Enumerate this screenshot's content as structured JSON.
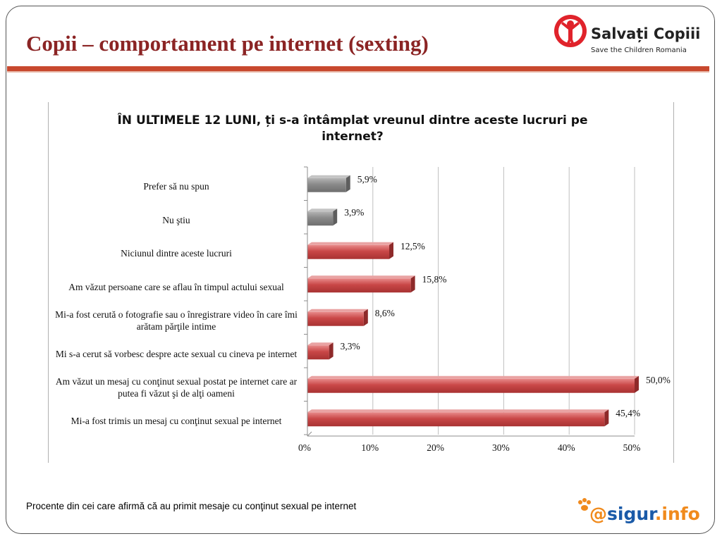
{
  "slide": {
    "title": "Copii – comportament pe internet (sexting)",
    "footnote": "Procente din cei care afirmă că au primit mesaje cu conţinut sexual pe internet"
  },
  "logos": {
    "salvati_copii": {
      "name": "Salvați Copiii",
      "subtitle": "Save the Children Romania",
      "icon": "child-figure-icon",
      "color": "#e0232b"
    },
    "sigur_info": {
      "at": "@",
      "name": "sigur",
      "suffix": ".info",
      "icon": "paw-icon",
      "colors": {
        "primary": "#1a5aa8",
        "accent": "#f08a1c"
      }
    }
  },
  "chart_data": {
    "type": "bar",
    "orientation": "horizontal",
    "title": "ÎN ULTIMELE 12 LUNI, ți s-a întâmplat vreunul dintre aceste lucruri pe internet?",
    "categories": [
      "Prefer să nu spun",
      "Nu ştiu",
      "Niciunul dintre aceste lucruri",
      "Am văzut persoane care se aflau în timpul actului sexual",
      "Mi-a fost cerută o fotografie sau o înregistrare video în care îmi arătam părţile intime",
      "Mi s-a cerut să vorbesc despre acte sexual cu cineva pe internet",
      "Am văzut un mesaj cu conţinut sexual postat pe internet care ar putea fi văzut şi de alţi oameni",
      "Mi-a fost trimis un mesaj cu conţinut sexual pe internet"
    ],
    "values": [
      5.9,
      3.9,
      12.5,
      15.8,
      8.6,
      3.3,
      50.0,
      45.4
    ],
    "value_labels": [
      "5,9%",
      "3,9%",
      "12,5%",
      "15,8%",
      "8,6%",
      "3,3%",
      "50,0%",
      "45,4%"
    ],
    "bar_colors": [
      "#8a8a8a",
      "#8a8a8a",
      "#c94747",
      "#c94747",
      "#c94747",
      "#c94747",
      "#c94747",
      "#c94747"
    ],
    "xlim": [
      0,
      50
    ],
    "x_ticks": [
      0,
      10,
      20,
      30,
      40,
      50
    ],
    "x_tick_labels": [
      "0%",
      "10%",
      "20%",
      "30%",
      "40%",
      "50%"
    ],
    "grid": true,
    "legend": "none"
  }
}
